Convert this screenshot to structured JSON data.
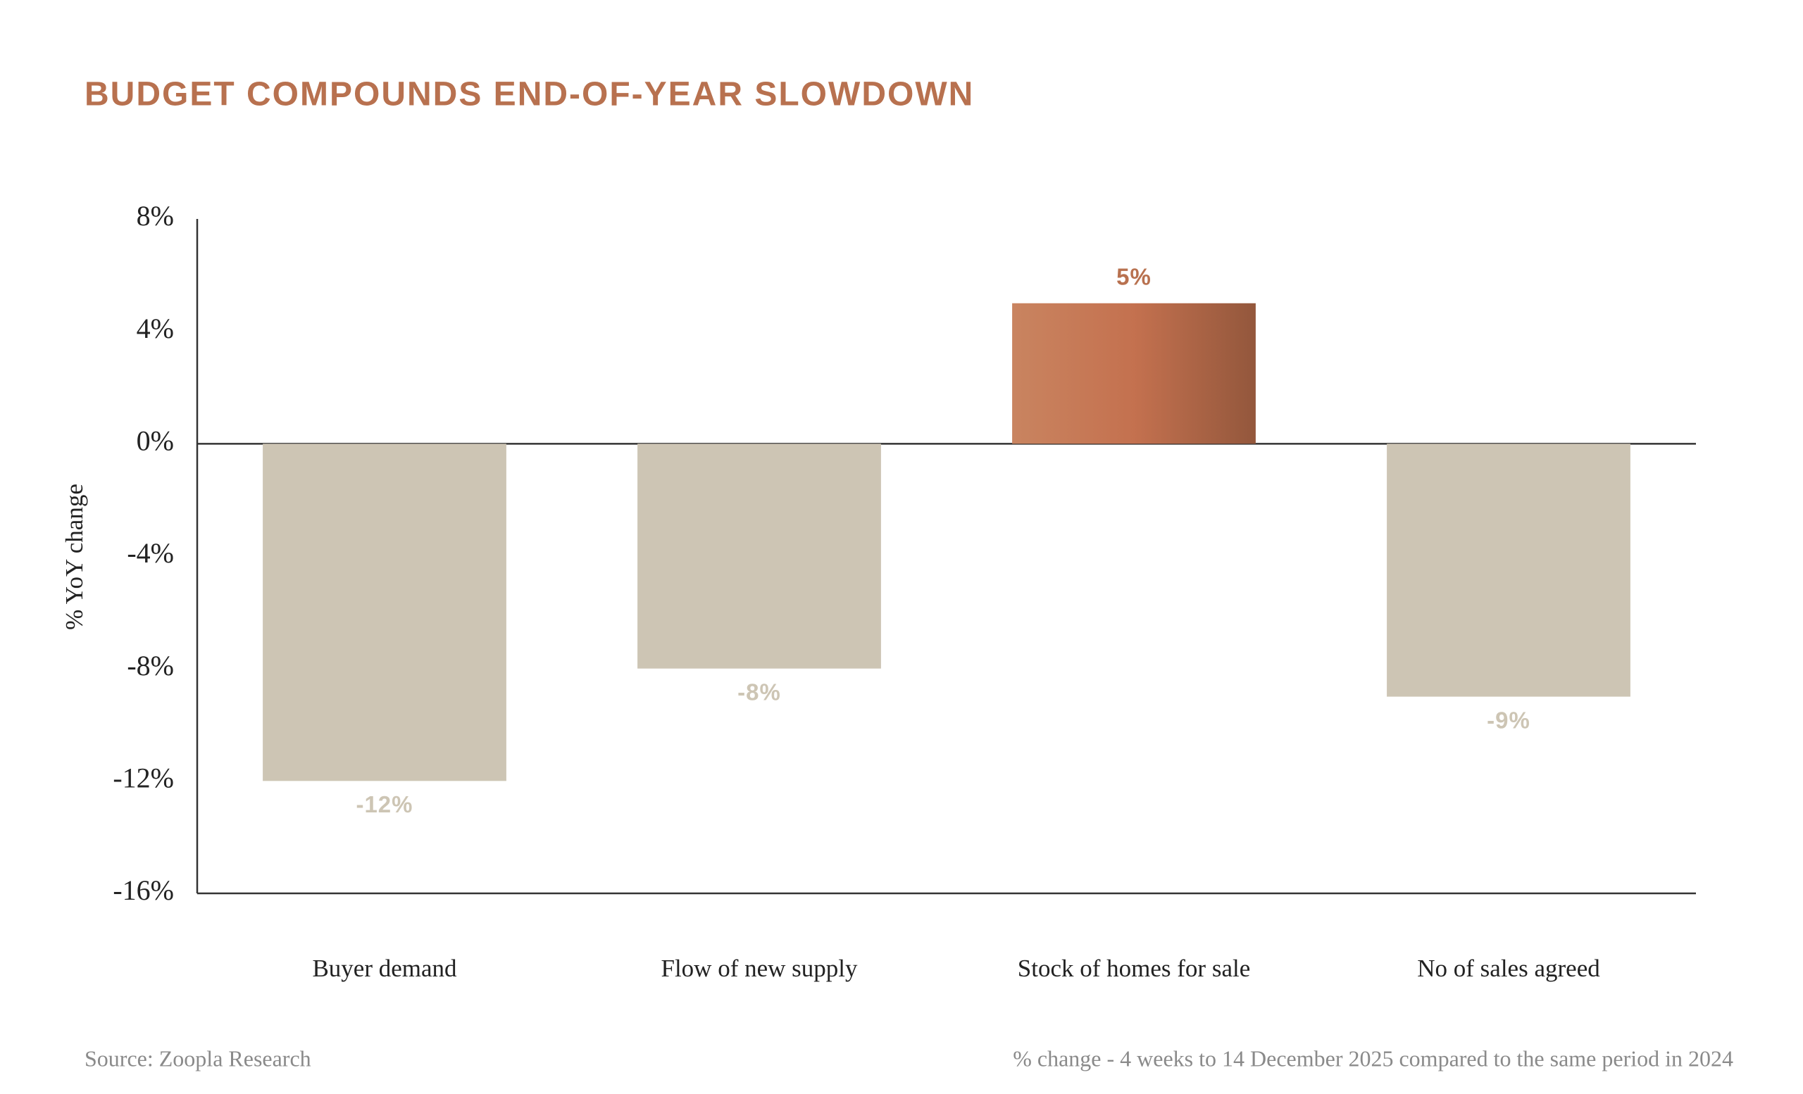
{
  "chart_data": {
    "type": "bar",
    "title": "BUDGET COMPOUNDS END-OF-YEAR SLOWDOWN",
    "y_label": "% YoY change",
    "categories": [
      "Buyer demand",
      "Flow of new supply",
      "Stock of homes for sale",
      "No of sales agreed"
    ],
    "values": [
      -12,
      -8,
      5,
      -9
    ],
    "value_labels": [
      "-12%",
      "-8%",
      "5%",
      "-9%"
    ],
    "colors": [
      [
        "#cdc5b4"
      ],
      [
        "#cdc5b4"
      ],
      [
        "#c98460",
        "#c4714f",
        "#93573c"
      ],
      [
        "#cdc5b4"
      ]
    ],
    "label_colors": [
      "#cdc5b4",
      "#cdc5b4",
      "#b8714f",
      "#cdc5b4"
    ],
    "ylim": [
      -16,
      8
    ],
    "yticks": [
      {
        "value": 8,
        "label": "8%"
      },
      {
        "value": 4,
        "label": "4%"
      },
      {
        "value": 0,
        "label": "0%"
      },
      {
        "value": -4,
        "label": "-4%"
      },
      {
        "value": -8,
        "label": "-8%"
      },
      {
        "value": -12,
        "label": "-12%"
      },
      {
        "value": -16,
        "label": "-16%"
      }
    ],
    "source": "Source: Zoopla Research",
    "note": "% change - 4 weeks to 14 December 2025 compared to the same period in 2024"
  }
}
